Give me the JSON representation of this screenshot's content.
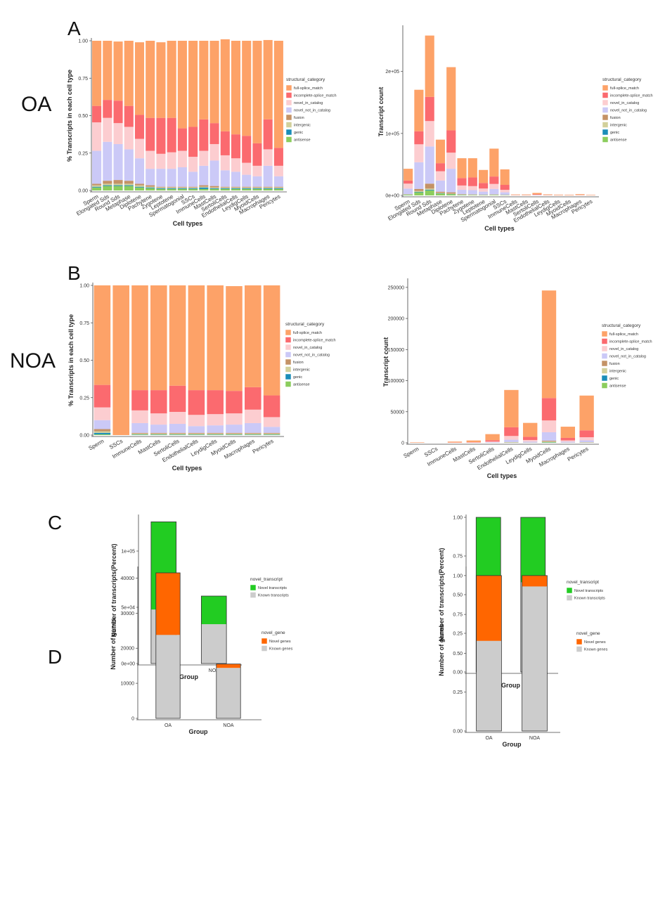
{
  "panel_labels": [
    "A",
    "B",
    "C",
    "D"
  ],
  "group_labels": {
    "oa": "OA",
    "noa": "NOA"
  },
  "colors": {
    "full-splice_match": "#FDA268",
    "incomplete-splice_match": "#FB6A6F",
    "novel_in_catalog": "#FCCDD0",
    "novel_not_in_catalog": "#CBC9F7",
    "fusion": "#C49266",
    "intergenic": "#D2D09B",
    "genic": "#1A8DB8",
    "antisense": "#8CCD5D",
    "novel_transcripts": "#22CC22",
    "known_transcripts": "#CCCCCC",
    "novel_genes": "#FF6600",
    "known_genes": "#CCCCCC"
  },
  "chart_data": [
    {
      "id": "A_left",
      "type": "bar",
      "stacked": true,
      "title": "",
      "xlabel": "Cell types",
      "ylabel": "% Transcripts in each cell type",
      "ylim": [
        0,
        1
      ],
      "yticks": [
        "0.00",
        "0.25",
        "0.50",
        "0.75",
        "1.00"
      ],
      "legend_title": "structural_category",
      "legend": [
        "full-splice_match",
        "incomplete-splice_match",
        "novel_in_catalog",
        "novel_not_in_catalog",
        "fusion",
        "intergenic",
        "genic",
        "antisense"
      ],
      "categories": [
        "Sperm",
        "Elongated Sds",
        "Round Sds",
        "Metaphase",
        "Diplotene",
        "Pachytene",
        "Zygotene",
        "Leptotene",
        "Spermatogonial",
        "SSCs",
        "ImmuneCells",
        "MastCells",
        "SertoliCells",
        "EndothelialCells",
        "LeydigCells",
        "MyoidCells",
        "Macrophages",
        "Pericytes"
      ],
      "series": [
        {
          "name": "antisense",
          "values": [
            0.02,
            0.03,
            0.03,
            0.03,
            0.02,
            0.015,
            0.01,
            0.01,
            0.01,
            0.01,
            0.01,
            0.01,
            0.01,
            0.01,
            0.01,
            0.01,
            0.01,
            0.01
          ]
        },
        {
          "name": "genic",
          "values": [
            0.005,
            0.005,
            0.005,
            0.005,
            0.005,
            0.005,
            0.005,
            0.005,
            0.005,
            0.005,
            0.01,
            0.005,
            0.005,
            0.005,
            0.005,
            0.005,
            0.005,
            0.005
          ]
        },
        {
          "name": "intergenic",
          "values": [
            0.01,
            0.01,
            0.01,
            0.01,
            0.01,
            0.005,
            0.005,
            0.005,
            0.005,
            0.005,
            0.005,
            0.005,
            0.005,
            0.005,
            0.005,
            0.005,
            0.005,
            0.005
          ]
        },
        {
          "name": "fusion",
          "values": [
            0.01,
            0.02,
            0.025,
            0.02,
            0.01,
            0.01,
            0.005,
            0.005,
            0.005,
            0.005,
            0.01,
            0.01,
            0.005,
            0.005,
            0.005,
            0.005,
            0.005,
            0.005
          ]
        },
        {
          "name": "novel_not_in_catalog",
          "values": [
            0.22,
            0.26,
            0.24,
            0.21,
            0.17,
            0.11,
            0.12,
            0.12,
            0.13,
            0.1,
            0.13,
            0.17,
            0.11,
            0.1,
            0.08,
            0.07,
            0.14,
            0.07
          ]
        },
        {
          "name": "novel_in_catalog",
          "values": [
            0.19,
            0.16,
            0.14,
            0.15,
            0.13,
            0.12,
            0.1,
            0.11,
            0.11,
            0.1,
            0.1,
            0.11,
            0.1,
            0.09,
            0.08,
            0.07,
            0.11,
            0.07
          ]
        },
        {
          "name": "incomplete-splice_match",
          "values": [
            0.11,
            0.12,
            0.15,
            0.14,
            0.16,
            0.22,
            0.24,
            0.23,
            0.15,
            0.2,
            0.21,
            0.14,
            0.16,
            0.16,
            0.18,
            0.15,
            0.2,
            0.12
          ]
        },
        {
          "name": "full-splice_match",
          "values": [
            0.435,
            0.395,
            0.395,
            0.435,
            0.485,
            0.515,
            0.505,
            0.515,
            0.585,
            0.575,
            0.525,
            0.55,
            0.615,
            0.625,
            0.635,
            0.685,
            0.53,
            0.715
          ]
        }
      ]
    },
    {
      "id": "A_right",
      "type": "bar",
      "stacked": true,
      "title": "",
      "xlabel": "Cell types",
      "ylabel": "Transcript count",
      "ylim": [
        0,
        270000
      ],
      "yticks": [
        "0e+00",
        "1e+05",
        "2e+05"
      ],
      "legend_title": "structural_category",
      "legend": [
        "full-splice_match",
        "incomplete-splice_match",
        "novel_in_catalog",
        "novel_not_in_catalog",
        "fusion",
        "intergenic",
        "genic",
        "antisense"
      ],
      "categories": [
        "Sperm",
        "Elongated Sds",
        "Round Sds",
        "Metaphase",
        "Diplotene",
        "Pachytene",
        "Zygotene",
        "Leptotene",
        "Spermatogonial",
        "SSCs",
        "ImmuneCells",
        "MastCells",
        "SertoliCells",
        "EndothelialCells",
        "LeydigCells",
        "MyoidCells",
        "Macrophages",
        "Pericytes"
      ],
      "series": [
        {
          "name": "antisense",
          "values": [
            1000,
            5000,
            8000,
            3000,
            2000,
            800,
            600,
            500,
            700,
            400,
            30,
            20,
            50,
            20,
            20,
            20,
            20,
            20
          ]
        },
        {
          "name": "genic",
          "values": [
            200,
            700,
            1000,
            400,
            300,
            200,
            100,
            100,
            100,
            100,
            10,
            10,
            10,
            10,
            10,
            10,
            10,
            10
          ]
        },
        {
          "name": "intergenic",
          "values": [
            400,
            1500,
            2000,
            800,
            600,
            300,
            300,
            200,
            300,
            200,
            10,
            10,
            20,
            10,
            10,
            10,
            10,
            10
          ]
        },
        {
          "name": "fusion",
          "values": [
            400,
            3300,
            8000,
            1800,
            2100,
            700,
            500,
            300,
            400,
            300,
            10,
            10,
            20,
            10,
            10,
            10,
            10,
            10
          ]
        },
        {
          "name": "novel_not_in_catalog",
          "values": [
            9000,
            43000,
            60000,
            18000,
            38000,
            7000,
            7000,
            5000,
            9000,
            4000,
            200,
            200,
            500,
            200,
            100,
            100,
            200,
            100
          ]
        },
        {
          "name": "novel_in_catalog",
          "values": [
            8000,
            29000,
            41000,
            15000,
            26000,
            7000,
            6500,
            5000,
            8000,
            4000,
            150,
            150,
            400,
            150,
            100,
            100,
            150,
            100
          ]
        },
        {
          "name": "incomplete-splice_match",
          "values": [
            5000,
            21000,
            39000,
            13000,
            36000,
            12000,
            14000,
            9000,
            12000,
            8000,
            300,
            200,
            700,
            250,
            200,
            200,
            300,
            150
          ]
        },
        {
          "name": "full-splice_match",
          "values": [
            19000,
            67000,
            99000,
            38000,
            102000,
            32000,
            31000,
            21000,
            45000,
            25000,
            800,
            900,
            2300,
            1000,
            800,
            700,
            1300,
            600
          ]
        }
      ]
    },
    {
      "id": "B_left",
      "type": "bar",
      "stacked": true,
      "title": "",
      "xlabel": "Cell types",
      "ylabel": "% Transcripts in each cell type",
      "ylim": [
        0,
        1
      ],
      "yticks": [
        "0.00",
        "0.25",
        "0.50",
        "0.75",
        "1.00"
      ],
      "legend_title": "structural_category",
      "legend": [
        "full-splice_match",
        "incomplete-splice_match",
        "novel_in_catalog",
        "novel_not_in_catalog",
        "fusion",
        "intergenic",
        "genic",
        "antisense"
      ],
      "categories": [
        "Sperm",
        "SSCs",
        "ImmuneCells",
        "MastCells",
        "SertoliCells",
        "EndothelialCells",
        "LeydigCells",
        "MyoidCells",
        "Macrophages",
        "Pericytes"
      ],
      "series": [
        {
          "name": "antisense",
          "values": [
            0.005,
            0,
            0.003,
            0.003,
            0.003,
            0.003,
            0.003,
            0.003,
            0.003,
            0.003
          ]
        },
        {
          "name": "genic",
          "values": [
            0.01,
            0,
            0.002,
            0.002,
            0.002,
            0.002,
            0.002,
            0.002,
            0.002,
            0.002
          ]
        },
        {
          "name": "intergenic",
          "values": [
            0.01,
            0,
            0.005,
            0.005,
            0.005,
            0.005,
            0.005,
            0.005,
            0.005,
            0.005
          ]
        },
        {
          "name": "fusion",
          "values": [
            0.015,
            0,
            0.005,
            0.005,
            0.005,
            0.005,
            0.005,
            0.005,
            0.005,
            0.005
          ]
        },
        {
          "name": "novel_not_in_catalog",
          "values": [
            0.06,
            0,
            0.065,
            0.055,
            0.06,
            0.045,
            0.05,
            0.055,
            0.065,
            0.04
          ]
        },
        {
          "name": "novel_in_catalog",
          "values": [
            0.085,
            0,
            0.085,
            0.075,
            0.08,
            0.075,
            0.075,
            0.075,
            0.09,
            0.065
          ]
        },
        {
          "name": "incomplete-splice_match",
          "values": [
            0.15,
            0,
            0.135,
            0.155,
            0.175,
            0.165,
            0.16,
            0.15,
            0.15,
            0.145
          ]
        },
        {
          "name": "full-splice_match",
          "values": [
            0.665,
            1.0,
            0.7,
            0.7,
            0.67,
            0.7,
            0.7,
            0.7,
            0.68,
            0.735
          ]
        }
      ]
    },
    {
      "id": "B_right",
      "type": "bar",
      "stacked": true,
      "title": "",
      "xlabel": "Cell types",
      "ylabel": "Transcript count",
      "ylim": [
        0,
        260000
      ],
      "yticks": [
        "0",
        "50000",
        "100000",
        "150000",
        "200000",
        "250000"
      ],
      "legend_title": "structural_category",
      "legend": [
        "full-splice_match",
        "incomplete-splice_match",
        "novel_in_catalog",
        "novel_not_in_catalog",
        "fusion",
        "intergenic",
        "genic",
        "antisense"
      ],
      "categories": [
        "Sperm",
        "SSCs",
        "ImmuneCells",
        "MastCells",
        "SertoliCells",
        "EndothelialCells",
        "LeydigCells",
        "MyoidCells",
        "Macrophages",
        "Pericytes"
      ],
      "series": [
        {
          "name": "antisense",
          "values": [
            10,
            0,
            10,
            20,
            50,
            300,
            100,
            800,
            100,
            200
          ]
        },
        {
          "name": "genic",
          "values": [
            10,
            0,
            10,
            10,
            20,
            100,
            50,
            300,
            50,
            100
          ]
        },
        {
          "name": "intergenic",
          "values": [
            10,
            0,
            10,
            20,
            50,
            400,
            150,
            1000,
            150,
            300
          ]
        },
        {
          "name": "fusion",
          "values": [
            10,
            0,
            10,
            20,
            60,
            400,
            150,
            1200,
            150,
            400
          ]
        },
        {
          "name": "novel_not_in_catalog",
          "values": [
            60,
            0,
            100,
            200,
            800,
            3800,
            1600,
            13700,
            1500,
            3000
          ]
        },
        {
          "name": "novel_in_catalog",
          "values": [
            80,
            0,
            150,
            300,
            1000,
            6000,
            2500,
            19000,
            2000,
            5000
          ]
        },
        {
          "name": "incomplete-splice_match",
          "values": [
            150,
            0,
            300,
            500,
            2200,
            14000,
            5000,
            36000,
            4000,
            11000
          ]
        },
        {
          "name": "full-splice_match",
          "values": [
            630,
            0,
            1400,
            2700,
            9800,
            60000,
            22500,
            173000,
            18000,
            56000
          ]
        }
      ]
    },
    {
      "id": "C_left",
      "type": "bar",
      "stacked": true,
      "title": "",
      "xlabel": "Group",
      "ylabel": "Number of transcripts(Percent)",
      "ylim": [
        0,
        130000
      ],
      "yticks": [
        "0e+00",
        "5e+04",
        "1e+05"
      ],
      "legend_title": "novel_transcript",
      "legend": [
        "Novel transcripts",
        "Known transcripts"
      ],
      "categories": [
        "OA",
        "NOA"
      ],
      "series": [
        {
          "name": "Known transcripts",
          "values": [
            48000,
            35000
          ]
        },
        {
          "name": "Novel transcripts",
          "values": [
            78000,
            25000
          ]
        }
      ]
    },
    {
      "id": "C_right",
      "type": "bar",
      "stacked": true,
      "title": "",
      "xlabel": "Group",
      "ylabel": "Number of transcripts(Percent)",
      "ylim": [
        0,
        1
      ],
      "yticks": [
        "0.00",
        "0.25",
        "0.50",
        "0.75",
        "1.00"
      ],
      "legend_title": "novel_transcript",
      "legend": [
        "Novel transcripts",
        "Known transcripts"
      ],
      "categories": [
        "OA",
        "NOA"
      ],
      "series": [
        {
          "name": "Known transcripts",
          "values": [
            0.37,
            0.58
          ]
        },
        {
          "name": "Novel transcripts",
          "values": [
            0.63,
            0.42
          ]
        }
      ]
    },
    {
      "id": "D_left",
      "type": "bar",
      "stacked": true,
      "title": "",
      "xlabel": "Group",
      "ylabel": "Number of genes",
      "ylim": [
        0,
        42500
      ],
      "yticks": [
        "0",
        "10000",
        "20000",
        "30000",
        "40000"
      ],
      "legend_title": "novel_gene",
      "legend": [
        "Novel genes",
        "Known genes"
      ],
      "categories": [
        "OA",
        "NOA"
      ],
      "series": [
        {
          "name": "Known genes",
          "values": [
            23800,
            14400
          ]
        },
        {
          "name": "Novel genes",
          "values": [
            17700,
            1100
          ]
        }
      ]
    },
    {
      "id": "D_right",
      "type": "bar",
      "stacked": true,
      "title": "",
      "xlabel": "Group",
      "ylabel": "Number of genes",
      "ylim": [
        0,
        1.04
      ],
      "yticks": [
        "0.00",
        "0.25",
        "0.50",
        "0.75",
        "1.00"
      ],
      "legend_title": "novel_gene",
      "legend": [
        "Novel genes",
        "Known genes"
      ],
      "categories": [
        "OA",
        "NOA"
      ],
      "series": [
        {
          "name": "Known genes",
          "values": [
            0.58,
            0.93
          ]
        },
        {
          "name": "Novel genes",
          "values": [
            0.42,
            0.07
          ]
        }
      ]
    }
  ]
}
